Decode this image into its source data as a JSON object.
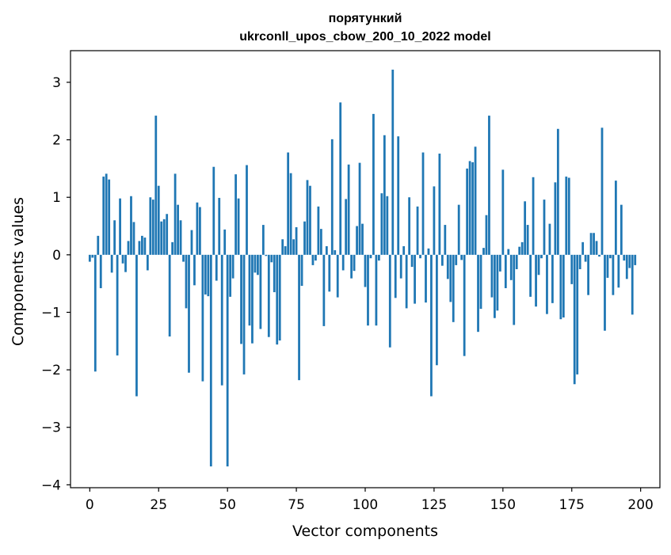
{
  "chart_data": {
    "type": "bar",
    "title": "порятункий",
    "subtitle": "ukrconll_upos_cbow_200_10_2022 model",
    "xlabel": "Vector components",
    "ylabel": "Components values",
    "xlim": [
      -7,
      207
    ],
    "ylim": [
      -4.05,
      3.55
    ],
    "xticks": [
      0,
      25,
      50,
      75,
      100,
      125,
      150,
      175,
      200
    ],
    "xtick_labels": [
      "0",
      "25",
      "50",
      "75",
      "100",
      "125",
      "150",
      "175",
      "200"
    ],
    "yticks": [
      -4,
      -3,
      -2,
      -1,
      0,
      1,
      2,
      3
    ],
    "ytick_labels": [
      "−4",
      "−3",
      "−2",
      "−1",
      "0",
      "1",
      "2",
      "3"
    ],
    "grid": false,
    "bar_color": "#1f77b4",
    "values": [
      -0.12,
      -0.05,
      -2.03,
      0.33,
      -0.58,
      1.36,
      1.41,
      1.31,
      -0.31,
      0.6,
      -1.75,
      0.98,
      -0.15,
      -0.3,
      0.24,
      1.02,
      0.57,
      -2.46,
      0.24,
      0.33,
      0.3,
      -0.27,
      1.0,
      0.96,
      2.42,
      1.2,
      0.58,
      0.62,
      0.71,
      -1.42,
      0.22,
      1.41,
      0.87,
      0.6,
      -0.12,
      -0.93,
      -2.05,
      0.43,
      -0.53,
      0.91,
      0.83,
      -2.2,
      -0.69,
      -0.72,
      -3.68,
      1.53,
      -0.45,
      0.99,
      -2.27,
      0.44,
      -3.68,
      -0.73,
      -0.41,
      1.4,
      0.98,
      -1.55,
      -2.08,
      1.56,
      -1.23,
      -1.54,
      -0.31,
      -0.35,
      -1.29,
      0.52,
      -0.02,
      -1.43,
      -0.13,
      -0.65,
      -1.56,
      -1.49,
      0.27,
      0.15,
      1.78,
      1.42,
      0.27,
      0.48,
      -2.18,
      -0.54,
      0.58,
      1.3,
      1.2,
      -0.18,
      -0.1,
      0.84,
      0.45,
      -1.24,
      0.15,
      -0.64,
      2.01,
      0.08,
      -0.74,
      2.65,
      -0.27,
      0.97,
      1.57,
      -0.41,
      -0.28,
      0.5,
      1.6,
      0.54,
      -0.56,
      -1.23,
      -0.06,
      2.45,
      -1.23,
      -0.1,
      1.07,
      2.08,
      1.02,
      -1.61,
      3.22,
      -0.75,
      2.06,
      -0.41,
      0.15,
      -0.93,
      1.0,
      -0.21,
      -0.85,
      0.84,
      -0.06,
      1.78,
      -0.83,
      0.11,
      -2.46,
      1.19,
      -1.92,
      1.76,
      -0.19,
      0.52,
      -0.42,
      -0.82,
      -1.17,
      -0.18,
      0.87,
      -0.09,
      -1.76,
      1.5,
      1.63,
      1.61,
      1.88,
      -1.34,
      -0.94,
      0.12,
      0.69,
      2.42,
      -0.74,
      -1.1,
      -0.97,
      -0.29,
      1.48,
      -0.58,
      0.1,
      -0.44,
      -1.22,
      -0.25,
      0.14,
      0.22,
      0.93,
      0.52,
      -0.73,
      1.35,
      -0.9,
      -0.35,
      -0.06,
      0.96,
      -1.03,
      0.54,
      -0.84,
      1.26,
      2.19,
      -1.12,
      -1.09,
      1.36,
      1.34,
      -0.51,
      -2.25,
      -2.08,
      -0.25,
      0.22,
      -0.12,
      -0.7,
      0.38,
      0.38,
      0.24,
      -0.03,
      2.21,
      -1.32,
      -0.4,
      -0.06,
      -0.7,
      1.29,
      -0.57,
      0.87,
      -0.1,
      -0.42,
      -0.23,
      -1.04,
      -0.18
    ]
  }
}
